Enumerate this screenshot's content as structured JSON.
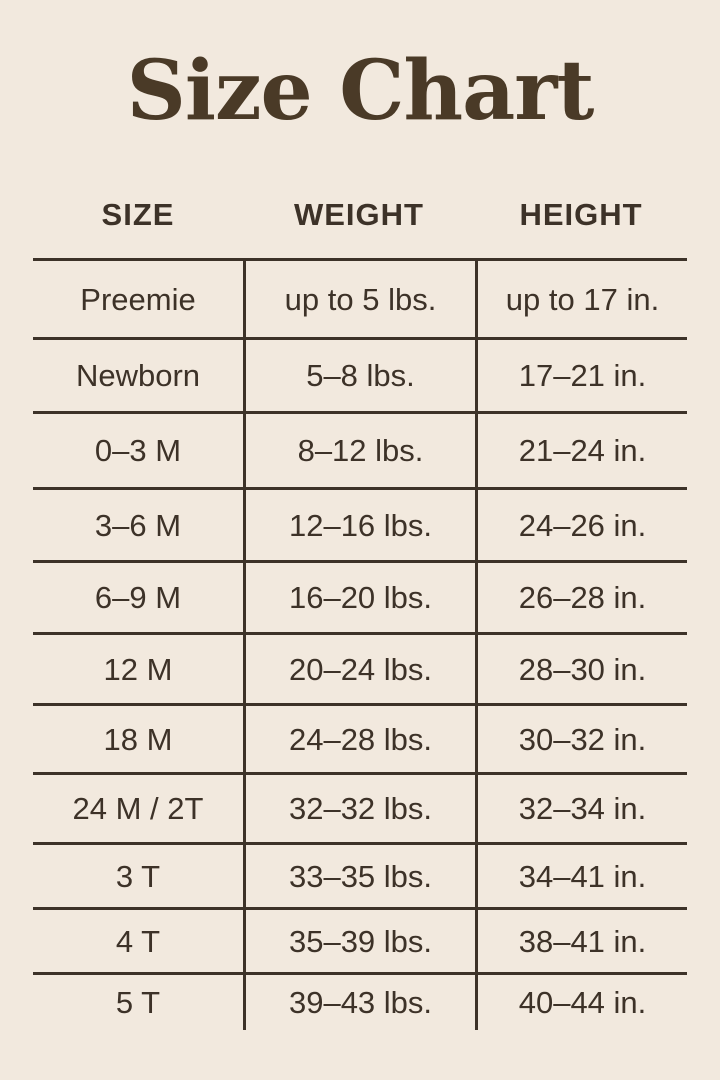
{
  "chart_data": {
    "type": "table",
    "title": "Size Chart",
    "columns": [
      "SIZE",
      "WEIGHT",
      "HEIGHT"
    ],
    "rows": [
      [
        "Preemie",
        "up to 5 lbs.",
        "up to 17 in."
      ],
      [
        "Newborn",
        "5–8 lbs.",
        "17–21 in."
      ],
      [
        "0–3 M",
        "8–12 lbs.",
        "21–24 in."
      ],
      [
        "3–6 M",
        "12–16 lbs.",
        "24–26 in."
      ],
      [
        "6–9 M",
        "16–20 lbs.",
        "26–28 in."
      ],
      [
        "12 M",
        "20–24 lbs.",
        "28–30 in."
      ],
      [
        "18 M",
        "24–28 lbs.",
        "30–32 in."
      ],
      [
        "24 M / 2T",
        "32–32 lbs.",
        "32–34 in."
      ],
      [
        "3 T",
        "33–35 lbs.",
        "34–41 in."
      ],
      [
        "4 T",
        "35–39 lbs.",
        "38–41 in."
      ],
      [
        "5 T",
        "39–43 lbs.",
        "40–44 in."
      ]
    ]
  },
  "colors": {
    "background": "#F2E9DE",
    "text": "#3D3228",
    "title": "#4A3A27",
    "line": "#3D3228"
  }
}
